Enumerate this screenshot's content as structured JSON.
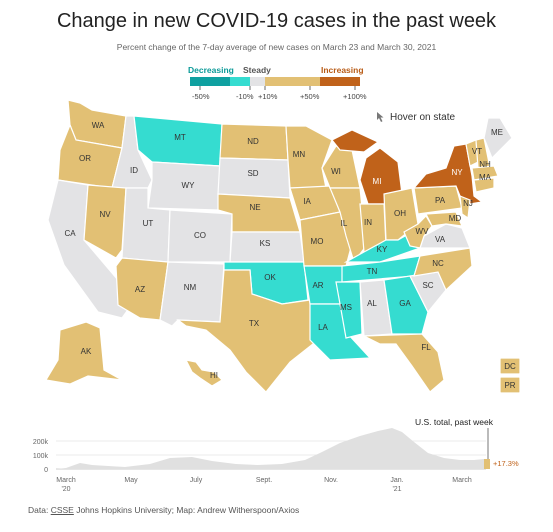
{
  "header": {
    "title": "Change in new COVID-19 cases in the past week",
    "subtitle": "Percent change of the 7-day average of new cases on March 23 and March 30, 2021"
  },
  "legend": {
    "decreasing": "Decreasing",
    "steady": "Steady",
    "increasing": "Increasing",
    "ticks": [
      "-50%",
      "-10%",
      "+10%",
      "+50%",
      "+100%"
    ],
    "colors": {
      "decreasing_dark": "#0fa0a0",
      "decreasing": "#35dcd0",
      "steady": "#e3e3e5",
      "increasing": "#e2c074",
      "increasing_dark": "#c0621a"
    }
  },
  "hover_note": "Hover on state",
  "states": {
    "wa": "WA",
    "or": "OR",
    "ca": "CA",
    "id": "ID",
    "nv": "NV",
    "mt": "MT",
    "wy": "WY",
    "ut": "UT",
    "az": "AZ",
    "co": "CO",
    "nm": "NM",
    "nd": "ND",
    "sd": "SD",
    "ne": "NE",
    "ks": "KS",
    "ok": "OK",
    "tx": "TX",
    "mn": "MN",
    "ia": "IA",
    "mo": "MO",
    "ar": "AR",
    "la": "LA",
    "wi": "WI",
    "il": "IL",
    "mi": "MI",
    "in": "IN",
    "oh": "OH",
    "ky": "KY",
    "tn": "TN",
    "ms": "MS",
    "al": "AL",
    "ga": "GA",
    "fl": "FL",
    "sc": "SC",
    "nc": "NC",
    "va": "VA",
    "wv": "WV",
    "pa": "PA",
    "ny": "NY",
    "vt": "VT",
    "nh": "NH",
    "me": "ME",
    "ma": "MA",
    "nj": "NJ",
    "md": "MD",
    "ak": "AK",
    "hi": "HI",
    "dc": "DC",
    "pr": "PR"
  },
  "spark": {
    "title": "U.S. total, past week",
    "change": "+17.3%",
    "y_ticks": [
      "200k",
      "100k",
      "0"
    ],
    "x_ticks": [
      {
        "l1": "March",
        "l2": "'20"
      },
      {
        "l1": "May",
        "l2": ""
      },
      {
        "l1": "July",
        "l2": ""
      },
      {
        "l1": "Sept.",
        "l2": ""
      },
      {
        "l1": "Nov.",
        "l2": ""
      },
      {
        "l1": "Jan.",
        "l2": "'21"
      },
      {
        "l1": "March",
        "l2": ""
      }
    ]
  },
  "credit": {
    "prefix": "Data: ",
    "source": "CSSE",
    "rest": " Johns Hopkins University; Map: Andrew Witherspoon/Axios"
  }
}
